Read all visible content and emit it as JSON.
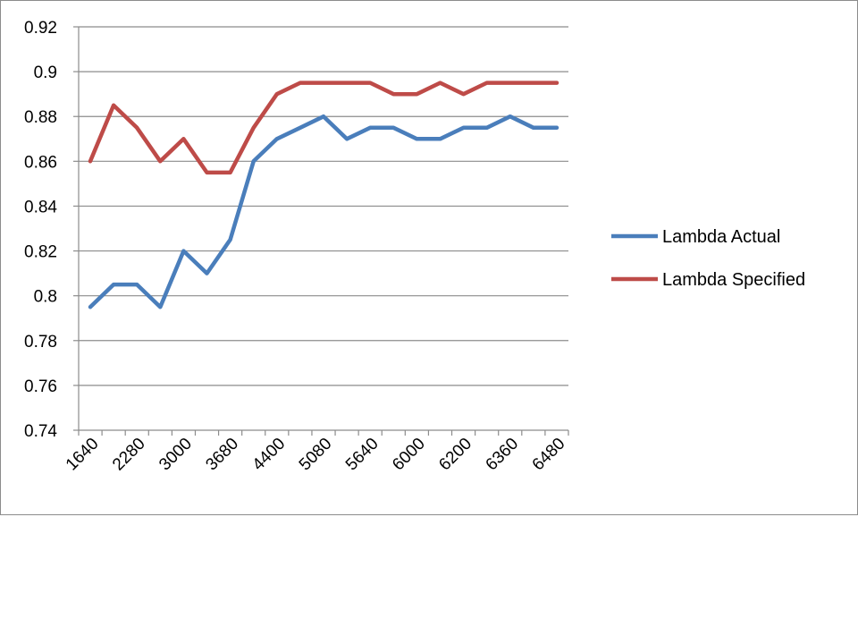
{
  "chart_data": {
    "type": "line",
    "categories": [
      "1640",
      "",
      "2280",
      "",
      "3000",
      "",
      "3680",
      "",
      "4400",
      "",
      "5080",
      "",
      "5640",
      "",
      "6000",
      "",
      "6200",
      "",
      "6360",
      "",
      "6480"
    ],
    "series": [
      {
        "name": "Lambda Actual",
        "color": "#4a7ebb",
        "values": [
          0.795,
          0.805,
          0.805,
          0.795,
          0.82,
          0.81,
          0.825,
          0.86,
          0.87,
          0.875,
          0.88,
          0.87,
          0.875,
          0.875,
          0.87,
          0.87,
          0.875,
          0.875,
          0.88,
          0.875,
          0.875
        ]
      },
      {
        "name": "Lambda Specified",
        "color": "#be4b48",
        "values": [
          0.86,
          0.885,
          0.875,
          0.86,
          0.87,
          0.855,
          0.855,
          0.875,
          0.89,
          0.895,
          0.895,
          0.895,
          0.895,
          0.89,
          0.89,
          0.895,
          0.89,
          0.895,
          0.895,
          0.895,
          0.895
        ]
      }
    ],
    "yticks": [
      "0.74",
      "0.76",
      "0.78",
      "0.8",
      "0.82",
      "0.84",
      "0.86",
      "0.88",
      "0.9",
      "0.92"
    ],
    "ylim": [
      0.74,
      0.92
    ],
    "grid": true,
    "legend_position": "right",
    "title": "",
    "xlabel": "",
    "ylabel": ""
  }
}
